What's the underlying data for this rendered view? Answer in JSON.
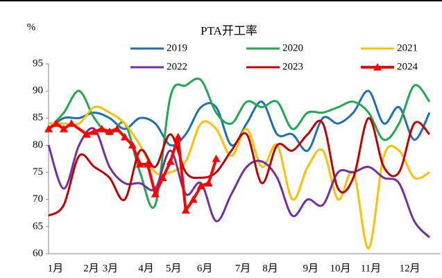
{
  "chart_data": {
    "type": "line",
    "title": "PTA开工率",
    "ylabel": "%",
    "x": [
      1,
      3,
      5,
      7,
      9,
      11,
      13,
      15,
      17,
      19,
      21,
      23,
      25,
      27,
      29,
      31,
      33,
      35,
      37,
      39,
      41,
      43,
      45,
      47,
      49,
      51
    ],
    "xlim": [
      1,
      52
    ],
    "xticks": [
      {
        "value": 1.9,
        "label": "1月"
      },
      {
        "value": 6.6,
        "label": "2月"
      },
      {
        "value": 9.1,
        "label": "3月"
      },
      {
        "value": 13.8,
        "label": "4月"
      },
      {
        "value": 17.4,
        "label": "5月"
      },
      {
        "value": 21.5,
        "label": "6月"
      },
      {
        "value": 26.5,
        "label": "7月"
      },
      {
        "value": 30.1,
        "label": "8月"
      },
      {
        "value": 35.4,
        "label": "9月"
      },
      {
        "value": 39.3,
        "label": "10月"
      },
      {
        "value": 43.3,
        "label": "11月"
      },
      {
        "value": 48.4,
        "label": "12月"
      }
    ],
    "ylim": [
      60,
      95
    ],
    "yticks": [
      60,
      65,
      70,
      75,
      80,
      85,
      90,
      95
    ],
    "series": [
      {
        "name": "2019",
        "color": "#1f6fb4",
        "values": [
          83,
          85,
          85,
          86,
          85,
          83,
          85,
          84,
          80,
          82,
          87,
          87,
          80,
          84,
          88,
          82,
          82,
          79,
          85,
          84,
          86,
          90,
          84,
          87,
          81,
          86
        ]
      },
      {
        "name": "2020",
        "color": "#1fa84f",
        "values": [
          83,
          86,
          90,
          85,
          82,
          84,
          75,
          69,
          89,
          91,
          92,
          86,
          84,
          88,
          87,
          88,
          83,
          86,
          86,
          87,
          88,
          86,
          81,
          84,
          91,
          88
        ]
      },
      {
        "name": "2021",
        "color": "#ffc000",
        "values": [
          84,
          84,
          84,
          87,
          86,
          84,
          80,
          75,
          75,
          77,
          84,
          83,
          78,
          83,
          76,
          80,
          70,
          76,
          79,
          70,
          75,
          61,
          78,
          79,
          74,
          75
        ]
      },
      {
        "name": "2022",
        "color": "#7030a0",
        "values": [
          80,
          72,
          80,
          83,
          76,
          73,
          73,
          72,
          79,
          71,
          73,
          66,
          71,
          76,
          77,
          74,
          67,
          70,
          69,
          75,
          75,
          76,
          74,
          73,
          66,
          63
        ]
      },
      {
        "name": "2023",
        "color": "#c00000",
        "values": [
          67,
          69,
          78,
          76,
          74,
          70,
          79,
          76,
          82,
          75,
          74,
          75,
          79,
          82,
          73,
          80,
          79,
          82,
          84,
          72,
          74,
          85,
          76,
          75,
          84,
          82
        ]
      },
      {
        "name": "2024",
        "color": "#ff0000",
        "marker": "triangle",
        "x": [
          1,
          2,
          3,
          4,
          6,
          7,
          8,
          9,
          10,
          11,
          12,
          13,
          14,
          15,
          16,
          17,
          18,
          19,
          20,
          21,
          22,
          23
        ],
        "values": [
          83,
          84,
          83,
          84,
          82,
          82.5,
          83,
          82.5,
          83,
          81.5,
          80,
          76.5,
          76.5,
          71,
          74,
          77,
          81.5,
          68,
          70,
          72.5,
          73,
          77.5
        ]
      }
    ]
  }
}
